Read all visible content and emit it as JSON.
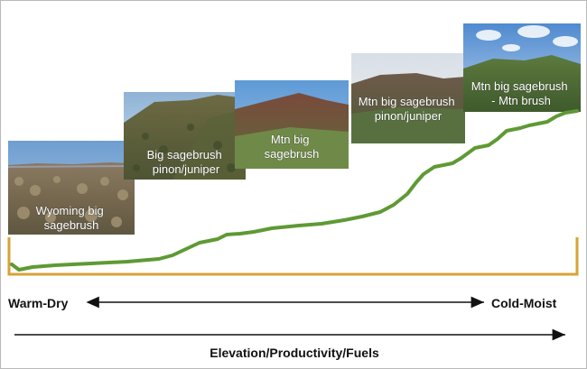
{
  "zones": [
    {
      "label_lines": [
        "Wyoming big",
        "sagebrush"
      ]
    },
    {
      "label_lines": [
        "Big sagebrush",
        "pinon/juniper"
      ]
    },
    {
      "label_lines": [
        "Mtn  big",
        "sagebrush"
      ]
    },
    {
      "label_lines": [
        "Mtn big sagebrush",
        "pinon/juniper"
      ]
    },
    {
      "label_lines": [
        "Mtn  big sagebrush",
        "- Mtn brush"
      ]
    }
  ],
  "axis": {
    "left_label": "Warm-Dry",
    "right_label": "Cold-Moist",
    "title": "Elevation/Productivity/Fuels"
  },
  "colors": {
    "curve": "#5e9a34",
    "bracket": "#d7a336",
    "arrow": "#111111"
  }
}
